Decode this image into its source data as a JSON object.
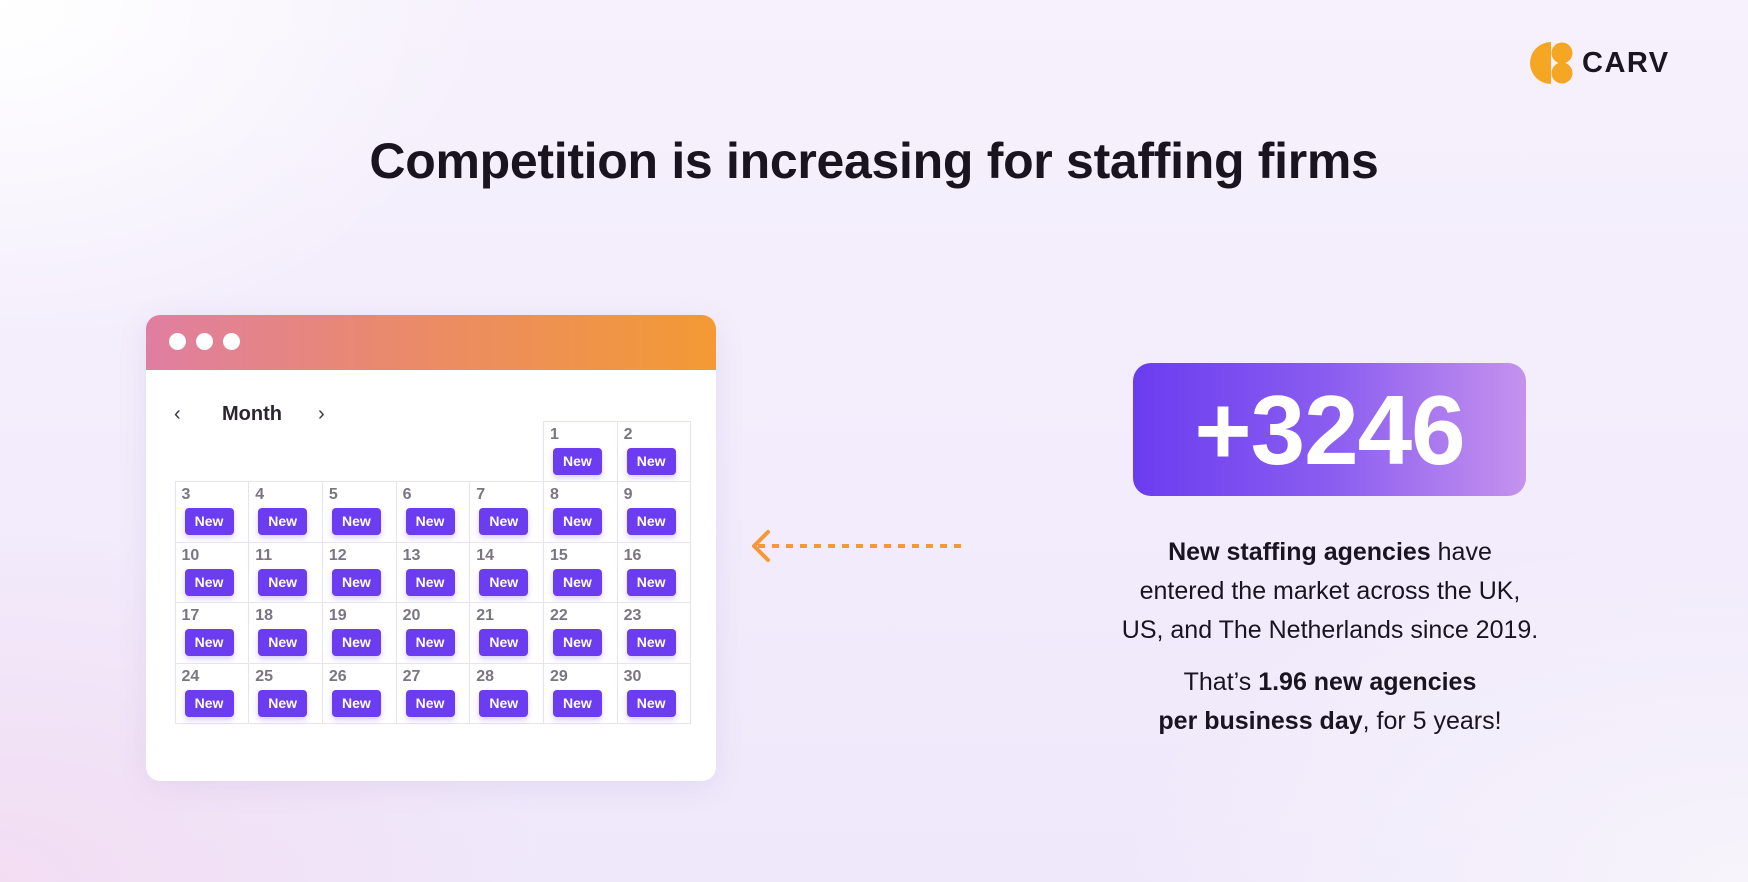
{
  "brand": {
    "name": "CARV",
    "logo_icon": "carv-logo-icon",
    "accent": "#f5a623"
  },
  "title": "Competition is increasing for staffing firms",
  "calendar": {
    "month_label": "Month",
    "prev_label": "‹",
    "next_label": "›",
    "badge_label": "New",
    "leading_blanks": 5,
    "days": [
      "1",
      "2",
      "3",
      "4",
      "5",
      "6",
      "7",
      "8",
      "9",
      "10",
      "11",
      "12",
      "13",
      "14",
      "15",
      "16",
      "17",
      "18",
      "19",
      "20",
      "21",
      "22",
      "23",
      "24",
      "25",
      "26",
      "27",
      "28",
      "29",
      "30"
    ],
    "colors": {
      "bar_start": "#e07ea2",
      "bar_end": "#f39a34",
      "badge": "#6b3cf0"
    }
  },
  "arrow": {
    "icon": "arrow-left-dashed-icon",
    "color": "#f39a34"
  },
  "stat": {
    "value": "+3246",
    "colors": {
      "start": "#6a3cf0",
      "end": "#c592ee"
    }
  },
  "description": {
    "p1_bold": "New staffing agencies",
    "p1_rest_a": " have",
    "p1_line2": "entered the market across the UK,",
    "p1_line3": "US, and The Netherlands since 2019.",
    "p2_pre": "That’s ",
    "p2_bold_a": "1.96 new agencies",
    "p2_bold_b": "per business day",
    "p2_post": ", for 5 years!"
  }
}
